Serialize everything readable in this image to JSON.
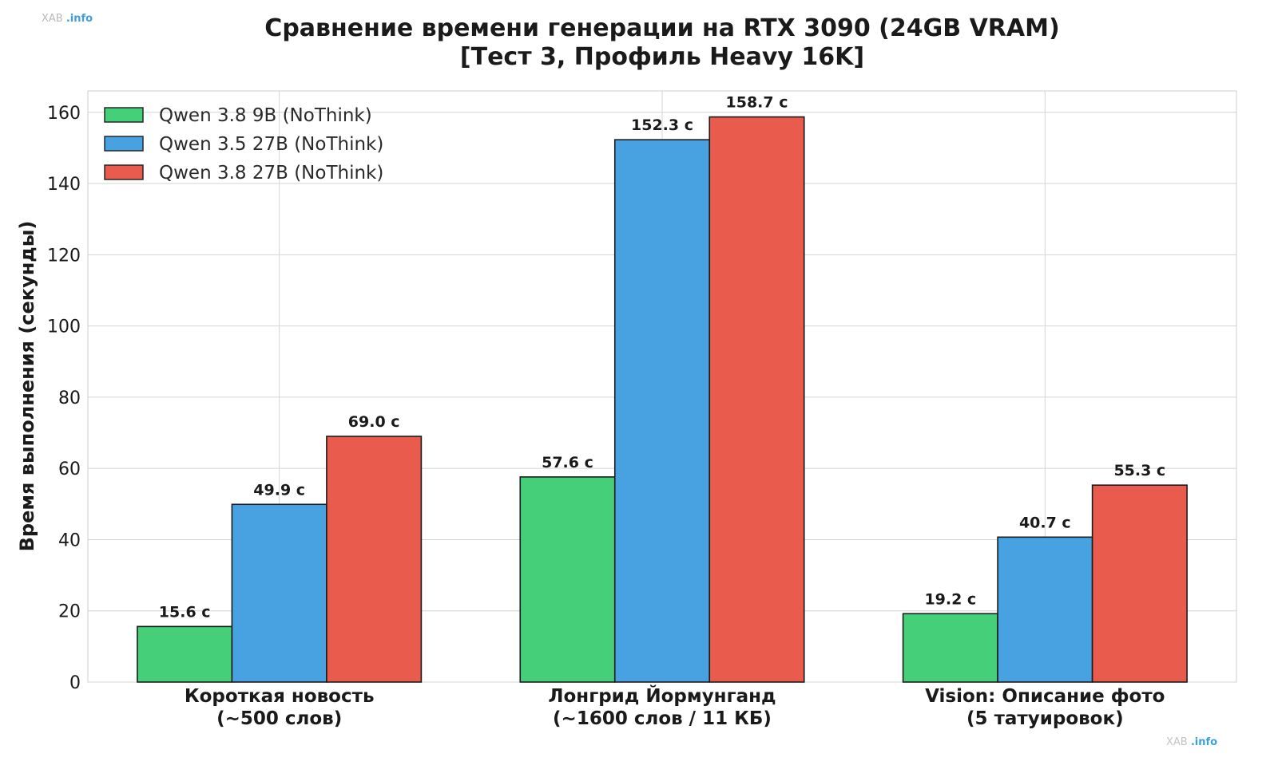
{
  "watermark_top": {
    "main": "XAB",
    "accent": ".info"
  },
  "watermark_bottom": {
    "main": "XAB",
    "accent": ".info"
  },
  "chart_data": {
    "type": "bar",
    "title_line1": "Сравнение времени генерации на RTX 3090 (24GB VRAM)",
    "title_line2": "[Тест 3, Профиль Heavy 16K]",
    "ylabel": "Время выполнения (секунды)",
    "xlabel": "",
    "ylim": [
      0,
      166
    ],
    "yticks": [
      0,
      20,
      40,
      60,
      80,
      100,
      120,
      140,
      160
    ],
    "grid": true,
    "legend_position": "top-left",
    "value_suffix": " с",
    "categories": [
      [
        "Короткая новость",
        "(~500 слов)"
      ],
      [
        "Лонгрид Йормунганд",
        "(~1600 слов / 11 КБ)"
      ],
      [
        "Vision: Описание фото",
        "(5 татуировок)"
      ]
    ],
    "series": [
      {
        "name": "Qwen 3.8 9B (NoThink)",
        "color": "#44cf78",
        "values": [
          15.6,
          57.6,
          19.2
        ]
      },
      {
        "name": "Qwen 3.5 27B (NoThink)",
        "color": "#48a1e0",
        "values": [
          49.9,
          152.3,
          40.7
        ]
      },
      {
        "name": "Qwen 3.8 27B (NoThink)",
        "color": "#e95b4d",
        "values": [
          69.0,
          158.7,
          55.3
        ]
      }
    ]
  }
}
